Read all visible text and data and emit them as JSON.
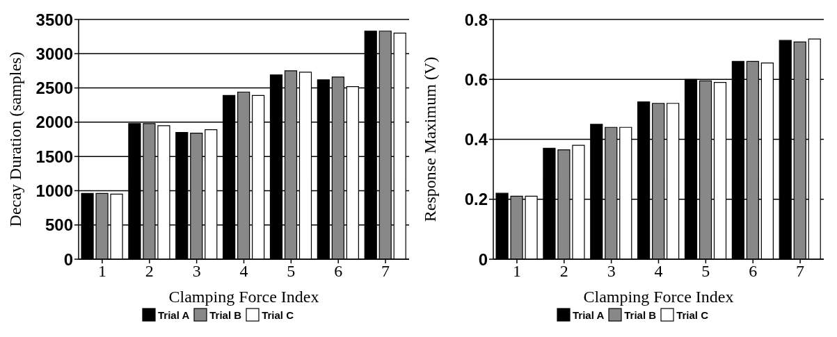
{
  "chart_data": [
    {
      "type": "bar",
      "xlabel": "Clamping Force Index",
      "ylabel": "Decay Duration (samples)",
      "categories": [
        "1",
        "2",
        "3",
        "4",
        "5",
        "6",
        "7"
      ],
      "series": [
        {
          "name": "Trial A",
          "color": "#000000",
          "values": [
            960,
            1980,
            1850,
            2390,
            2690,
            2620,
            3330
          ]
        },
        {
          "name": "Trial B",
          "color": "#888888",
          "values": [
            960,
            1980,
            1840,
            2440,
            2750,
            2660,
            3330
          ]
        },
        {
          "name": "Trial C",
          "color": "#ffffff",
          "values": [
            950,
            1950,
            1890,
            2390,
            2730,
            2520,
            3300
          ]
        }
      ],
      "ylim": [
        0,
        3500
      ],
      "yticks": [
        0,
        500,
        1000,
        1500,
        2000,
        2500,
        3000,
        3500
      ],
      "grid": "y",
      "legend": "bottom"
    },
    {
      "type": "bar",
      "xlabel": "Clamping Force Index",
      "ylabel": "Response Maximum (V)",
      "categories": [
        "1",
        "2",
        "3",
        "4",
        "5",
        "6",
        "7"
      ],
      "series": [
        {
          "name": "Trial A",
          "color": "#000000",
          "values": [
            0.22,
            0.37,
            0.45,
            0.525,
            0.6,
            0.66,
            0.73
          ]
        },
        {
          "name": "Trial B",
          "color": "#888888",
          "values": [
            0.21,
            0.365,
            0.44,
            0.52,
            0.595,
            0.66,
            0.725
          ]
        },
        {
          "name": "Trial C",
          "color": "#ffffff",
          "values": [
            0.21,
            0.38,
            0.44,
            0.52,
            0.59,
            0.655,
            0.735
          ]
        }
      ],
      "ylim": [
        0,
        0.8
      ],
      "yticks": [
        0,
        0.2,
        0.4,
        0.6,
        0.8
      ],
      "grid": "y",
      "legend": "bottom"
    }
  ]
}
